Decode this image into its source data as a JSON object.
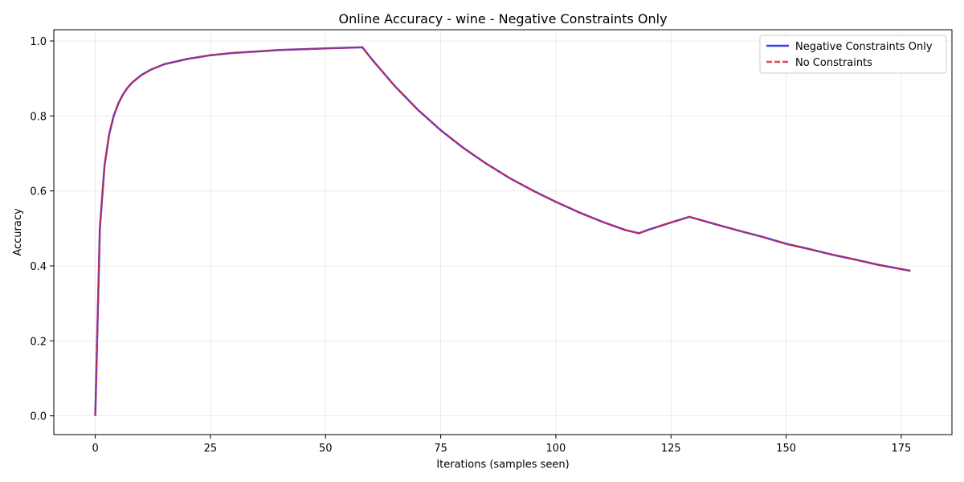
{
  "chart_data": {
    "type": "line",
    "title": "Online Accuracy - wine - Negative Constraints Only",
    "xlabel": "Iterations (samples seen)",
    "ylabel": "Accuracy",
    "xlim": [
      -9,
      186
    ],
    "ylim": [
      -0.05,
      1.03
    ],
    "xticks": [
      0,
      25,
      50,
      75,
      100,
      125,
      150,
      175
    ],
    "xtick_labels": [
      "0",
      "25",
      "50",
      "75",
      "100",
      "125",
      "150",
      "175"
    ],
    "yticks": [
      0.0,
      0.2,
      0.4,
      0.6,
      0.8,
      1.0
    ],
    "ytick_labels": [
      "0.0",
      "0.2",
      "0.4",
      "0.6",
      "0.8",
      "1.0"
    ],
    "grid": true,
    "legend_position": "top-right",
    "series": [
      {
        "name": "Negative Constraints Only",
        "color": "#1f1fe6",
        "style": "solid",
        "x": [
          0,
          1,
          2,
          3,
          4,
          5,
          6,
          7,
          8,
          10,
          12,
          15,
          20,
          25,
          30,
          35,
          40,
          45,
          50,
          55,
          58,
          60,
          65,
          70,
          75,
          80,
          85,
          90,
          95,
          100,
          105,
          110,
          115,
          118,
          120,
          125,
          129,
          135,
          140,
          145,
          150,
          155,
          160,
          165,
          170,
          177
        ],
        "y": [
          0.0,
          0.5,
          0.667,
          0.75,
          0.8,
          0.833,
          0.857,
          0.875,
          0.889,
          0.909,
          0.923,
          0.938,
          0.952,
          0.962,
          0.968,
          0.972,
          0.976,
          0.978,
          0.98,
          0.982,
          0.983,
          0.952,
          0.88,
          0.817,
          0.762,
          0.714,
          0.672,
          0.634,
          0.601,
          0.571,
          0.543,
          0.518,
          0.496,
          0.487,
          0.496,
          0.516,
          0.531,
          0.51,
          0.493,
          0.477,
          0.459,
          0.445,
          0.43,
          0.417,
          0.403,
          0.387
        ]
      },
      {
        "name": "No Constraints",
        "color": "#e8262e",
        "style": "dashed",
        "x": [
          0,
          1,
          2,
          3,
          4,
          5,
          6,
          7,
          8,
          10,
          12,
          15,
          20,
          25,
          30,
          35,
          40,
          45,
          50,
          55,
          58,
          60,
          65,
          70,
          75,
          80,
          85,
          90,
          95,
          100,
          105,
          110,
          115,
          118,
          120,
          125,
          129,
          135,
          140,
          145,
          150,
          155,
          160,
          165,
          170,
          177
        ],
        "y": [
          0.0,
          0.5,
          0.667,
          0.75,
          0.8,
          0.833,
          0.857,
          0.875,
          0.889,
          0.909,
          0.923,
          0.938,
          0.952,
          0.962,
          0.968,
          0.972,
          0.976,
          0.978,
          0.98,
          0.982,
          0.983,
          0.952,
          0.88,
          0.817,
          0.762,
          0.714,
          0.672,
          0.634,
          0.601,
          0.571,
          0.543,
          0.518,
          0.496,
          0.487,
          0.496,
          0.516,
          0.531,
          0.51,
          0.493,
          0.477,
          0.459,
          0.445,
          0.43,
          0.417,
          0.403,
          0.387
        ]
      }
    ]
  }
}
